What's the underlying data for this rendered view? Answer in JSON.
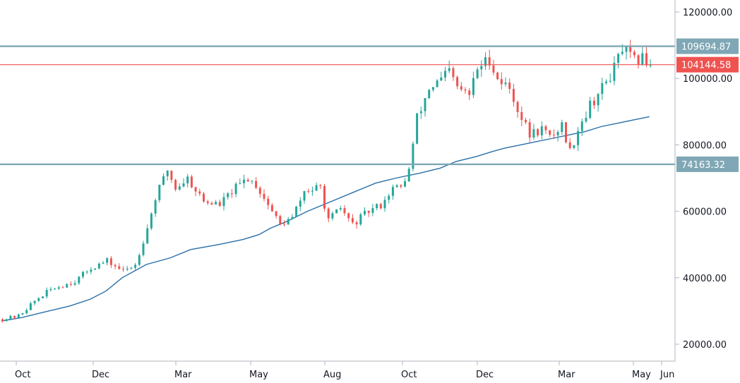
{
  "chart_data": {
    "type": "candlestick",
    "instrument_hint": "daily candles with long moving average",
    "x_labels": [
      "Oct",
      "Dec",
      "Mar",
      "May",
      "Aug",
      "Oct",
      "Dec",
      "Mar",
      "May",
      "Jun"
    ],
    "y_ticks": [
      "120000.00",
      "100000.00",
      "80000.00",
      "60000.00",
      "40000.00",
      "20000.00"
    ],
    "ylim": [
      16000,
      121000
    ],
    "grid": false,
    "horizontal_levels": [
      {
        "label": "109694.87",
        "value": 109694.87,
        "color": "#7fa7b5",
        "badge_color": "#7fa7b5"
      },
      {
        "label": "104144.58",
        "value": 104144.58,
        "color": "#ef5350",
        "badge_color": "#ef5350"
      },
      {
        "label": "74163.32",
        "value": 74163.32,
        "color": "#7fa7b5",
        "badge_color": "#7fa7b5"
      }
    ],
    "up_color": "#26a69a",
    "down_color": "#ef5350",
    "ma_color": "#2a6fa8",
    "price_path": [
      [
        0,
        27500
      ],
      [
        4,
        28500
      ],
      [
        8,
        33000
      ],
      [
        12,
        36500
      ],
      [
        18,
        39000
      ],
      [
        22,
        43000
      ],
      [
        26,
        45000
      ],
      [
        30,
        42000
      ],
      [
        33,
        44000
      ],
      [
        36,
        55000
      ],
      [
        38,
        64000
      ],
      [
        41,
        72500
      ],
      [
        43,
        67000
      ],
      [
        46,
        70000
      ],
      [
        50,
        63000
      ],
      [
        54,
        62000
      ],
      [
        57,
        66000
      ],
      [
        61,
        70000
      ],
      [
        63,
        68000
      ],
      [
        66,
        62000
      ],
      [
        69,
        56000
      ],
      [
        72,
        58000
      ],
      [
        75,
        66000
      ],
      [
        79,
        67000
      ],
      [
        81,
        57000
      ],
      [
        84,
        61000
      ],
      [
        87,
        56000
      ],
      [
        91,
        60000
      ],
      [
        94,
        62000
      ],
      [
        97,
        67000
      ],
      [
        99,
        67000
      ],
      [
        101,
        72500
      ],
      [
        103,
        88000
      ],
      [
        106,
        97000
      ],
      [
        109,
        99500
      ],
      [
        111,
        102000
      ],
      [
        113,
        97000
      ],
      [
        116,
        95000
      ],
      [
        118,
        103000
      ],
      [
        121,
        106000
      ],
      [
        123,
        100000
      ],
      [
        126,
        97000
      ],
      [
        129,
        88000
      ],
      [
        131,
        83000
      ],
      [
        134,
        85000
      ],
      [
        136,
        82000
      ],
      [
        139,
        86000
      ],
      [
        141,
        78000
      ],
      [
        143,
        85000
      ],
      [
        146,
        92000
      ],
      [
        149,
        97000
      ],
      [
        152,
        103000
      ],
      [
        154,
        109000
      ],
      [
        157,
        105000
      ],
      [
        159,
        106000
      ],
      [
        161,
        104500
      ]
    ],
    "ma_path": [
      [
        0,
        27000
      ],
      [
        5,
        28000
      ],
      [
        10,
        29500
      ],
      [
        17,
        31500
      ],
      [
        22,
        33500
      ],
      [
        26,
        36000
      ],
      [
        30,
        40000
      ],
      [
        36,
        44000
      ],
      [
        42,
        46000
      ],
      [
        47,
        48500
      ],
      [
        54,
        50000
      ],
      [
        60,
        51500
      ],
      [
        64,
        53000
      ],
      [
        67,
        55000
      ],
      [
        71,
        57000
      ],
      [
        76,
        60000
      ],
      [
        82,
        63000
      ],
      [
        88,
        66000
      ],
      [
        93,
        68500
      ],
      [
        98,
        70000
      ],
      [
        104,
        71500
      ],
      [
        109,
        73000
      ],
      [
        113,
        75000
      ],
      [
        118,
        76500
      ],
      [
        122,
        78000
      ],
      [
        125,
        79000
      ],
      [
        129,
        80000
      ],
      [
        133,
        81000
      ],
      [
        137,
        82000
      ],
      [
        141,
        83000
      ],
      [
        145,
        84000
      ],
      [
        149,
        85500
      ],
      [
        153,
        86500
      ],
      [
        157,
        87500
      ],
      [
        161,
        88500
      ]
    ]
  }
}
